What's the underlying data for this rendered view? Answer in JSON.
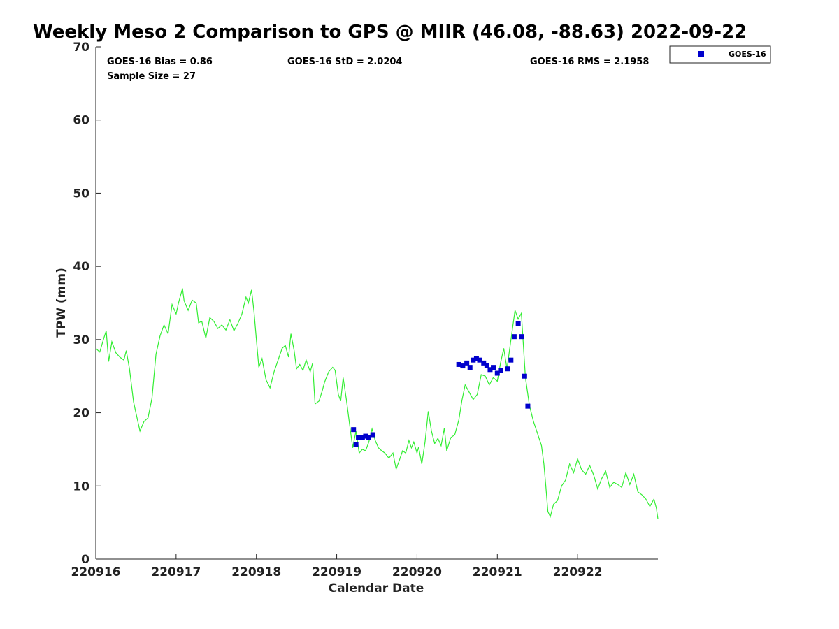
{
  "chart_data": {
    "type": "line",
    "title": "Weekly Meso 2 Comparison to GPS @ MIIR (46.08, -88.63) 2022-09-22",
    "xlabel": "Calendar Date",
    "ylabel": "TPW (mm)",
    "xlim": [
      0,
      7
    ],
    "ylim": [
      0,
      70
    ],
    "x_ticks": [
      0,
      1,
      2,
      3,
      4,
      5,
      6
    ],
    "x_tick_labels": [
      "220916",
      "220917",
      "220918",
      "220919",
      "220920",
      "220921",
      "220922"
    ],
    "y_ticks": [
      0,
      10,
      20,
      30,
      40,
      50,
      60,
      70
    ],
    "y_tick_labels": [
      "0",
      "10",
      "20",
      "30",
      "40",
      "50",
      "60",
      "70"
    ],
    "stats": {
      "bias": "GOES-16 Bias = 0.86",
      "std": "GOES-16 StD = 2.0204",
      "rms": "GOES-16 RMS = 2.1958",
      "sample_size": "Sample Size = 27"
    },
    "legend": {
      "position": "top-right",
      "entries": [
        {
          "label": "GOES-16",
          "color": "#0000cc",
          "marker": "square"
        }
      ]
    },
    "gps_line": {
      "color": "#33ee33",
      "points": [
        [
          0.0,
          28.8
        ],
        [
          0.05,
          28.3
        ],
        [
          0.1,
          30.2
        ],
        [
          0.13,
          31.2
        ],
        [
          0.16,
          27.0
        ],
        [
          0.2,
          29.7
        ],
        [
          0.25,
          28.2
        ],
        [
          0.3,
          27.6
        ],
        [
          0.35,
          27.2
        ],
        [
          0.38,
          28.5
        ],
        [
          0.42,
          26.0
        ],
        [
          0.47,
          21.5
        ],
        [
          0.5,
          20.0
        ],
        [
          0.55,
          17.5
        ],
        [
          0.6,
          18.8
        ],
        [
          0.65,
          19.3
        ],
        [
          0.7,
          22.0
        ],
        [
          0.75,
          28.0
        ],
        [
          0.8,
          30.5
        ],
        [
          0.85,
          32.0
        ],
        [
          0.9,
          30.8
        ],
        [
          0.95,
          34.8
        ],
        [
          1.0,
          33.5
        ],
        [
          1.03,
          35.0
        ],
        [
          1.08,
          37.0
        ],
        [
          1.1,
          35.3
        ],
        [
          1.15,
          34.0
        ],
        [
          1.2,
          35.4
        ],
        [
          1.25,
          35.0
        ],
        [
          1.28,
          32.3
        ],
        [
          1.32,
          32.5
        ],
        [
          1.37,
          30.2
        ],
        [
          1.42,
          33.0
        ],
        [
          1.47,
          32.5
        ],
        [
          1.52,
          31.5
        ],
        [
          1.57,
          32.0
        ],
        [
          1.62,
          31.3
        ],
        [
          1.67,
          32.7
        ],
        [
          1.72,
          31.2
        ],
        [
          1.77,
          32.2
        ],
        [
          1.82,
          33.5
        ],
        [
          1.87,
          35.8
        ],
        [
          1.9,
          35.0
        ],
        [
          1.94,
          36.8
        ],
        [
          1.97,
          33.8
        ],
        [
          2.0,
          30.0
        ],
        [
          2.03,
          26.2
        ],
        [
          2.07,
          27.4
        ],
        [
          2.12,
          24.5
        ],
        [
          2.17,
          23.4
        ],
        [
          2.22,
          25.6
        ],
        [
          2.27,
          27.2
        ],
        [
          2.32,
          28.8
        ],
        [
          2.36,
          29.2
        ],
        [
          2.4,
          27.6
        ],
        [
          2.43,
          30.8
        ],
        [
          2.47,
          28.5
        ],
        [
          2.5,
          26.0
        ],
        [
          2.54,
          26.6
        ],
        [
          2.58,
          25.8
        ],
        [
          2.62,
          27.2
        ],
        [
          2.67,
          25.6
        ],
        [
          2.7,
          26.8
        ],
        [
          2.73,
          21.2
        ],
        [
          2.78,
          21.6
        ],
        [
          2.82,
          23.0
        ],
        [
          2.85,
          24.2
        ],
        [
          2.9,
          25.6
        ],
        [
          2.95,
          26.2
        ],
        [
          2.98,
          25.8
        ],
        [
          3.02,
          22.5
        ],
        [
          3.05,
          21.6
        ],
        [
          3.08,
          24.8
        ],
        [
          3.12,
          21.8
        ],
        [
          3.16,
          18.5
        ],
        [
          3.2,
          15.2
        ],
        [
          3.24,
          17.5
        ],
        [
          3.28,
          14.5
        ],
        [
          3.32,
          15.0
        ],
        [
          3.36,
          14.8
        ],
        [
          3.4,
          16.0
        ],
        [
          3.44,
          17.8
        ],
        [
          3.48,
          16.2
        ],
        [
          3.52,
          15.2
        ],
        [
          3.56,
          14.8
        ],
        [
          3.6,
          14.5
        ],
        [
          3.65,
          13.8
        ],
        [
          3.7,
          14.5
        ],
        [
          3.74,
          12.3
        ],
        [
          3.78,
          13.5
        ],
        [
          3.82,
          14.8
        ],
        [
          3.86,
          14.5
        ],
        [
          3.9,
          16.2
        ],
        [
          3.93,
          15.2
        ],
        [
          3.96,
          16.0
        ],
        [
          4.0,
          14.5
        ],
        [
          4.02,
          15.3
        ],
        [
          4.06,
          13.0
        ],
        [
          4.1,
          16.0
        ],
        [
          4.14,
          20.2
        ],
        [
          4.18,
          17.5
        ],
        [
          4.22,
          15.8
        ],
        [
          4.26,
          16.5
        ],
        [
          4.3,
          15.5
        ],
        [
          4.34,
          17.9
        ],
        [
          4.37,
          14.8
        ],
        [
          4.42,
          16.6
        ],
        [
          4.47,
          17.0
        ],
        [
          4.52,
          19.0
        ],
        [
          4.56,
          21.7
        ],
        [
          4.6,
          23.8
        ],
        [
          4.65,
          22.8
        ],
        [
          4.7,
          21.8
        ],
        [
          4.75,
          22.5
        ],
        [
          4.8,
          25.2
        ],
        [
          4.85,
          25.0
        ],
        [
          4.9,
          23.8
        ],
        [
          4.95,
          24.8
        ],
        [
          5.0,
          24.3
        ],
        [
          5.04,
          26.8
        ],
        [
          5.08,
          28.8
        ],
        [
          5.12,
          26.0
        ],
        [
          5.17,
          30.0
        ],
        [
          5.22,
          34.0
        ],
        [
          5.26,
          32.8
        ],
        [
          5.3,
          33.6
        ],
        [
          5.35,
          24.8
        ],
        [
          5.4,
          21.0
        ],
        [
          5.45,
          18.8
        ],
        [
          5.5,
          17.2
        ],
        [
          5.55,
          15.5
        ],
        [
          5.58,
          13.0
        ],
        [
          5.6,
          10.5
        ],
        [
          5.63,
          6.5
        ],
        [
          5.66,
          5.8
        ],
        [
          5.7,
          7.5
        ],
        [
          5.75,
          8.0
        ],
        [
          5.8,
          10.0
        ],
        [
          5.85,
          10.8
        ],
        [
          5.9,
          13.0
        ],
        [
          5.95,
          11.8
        ],
        [
          6.0,
          13.7
        ],
        [
          6.05,
          12.2
        ],
        [
          6.1,
          11.6
        ],
        [
          6.15,
          12.8
        ],
        [
          6.2,
          11.5
        ],
        [
          6.25,
          9.6
        ],
        [
          6.3,
          11.0
        ],
        [
          6.35,
          12.0
        ],
        [
          6.4,
          9.8
        ],
        [
          6.45,
          10.5
        ],
        [
          6.5,
          10.2
        ],
        [
          6.55,
          9.8
        ],
        [
          6.6,
          11.8
        ],
        [
          6.65,
          10.2
        ],
        [
          6.7,
          11.6
        ],
        [
          6.75,
          9.2
        ],
        [
          6.8,
          8.8
        ],
        [
          6.85,
          8.2
        ],
        [
          6.9,
          7.2
        ],
        [
          6.95,
          8.2
        ],
        [
          6.98,
          7.0
        ],
        [
          7.0,
          5.5
        ]
      ]
    },
    "series": [
      {
        "name": "GOES-16",
        "color": "#0000cc",
        "marker": "square",
        "points": [
          [
            3.21,
            17.7
          ],
          [
            3.24,
            15.7
          ],
          [
            3.27,
            16.6
          ],
          [
            3.32,
            16.6
          ],
          [
            3.36,
            16.8
          ],
          [
            3.4,
            16.6
          ],
          [
            3.45,
            17.0
          ],
          [
            4.52,
            26.6
          ],
          [
            4.57,
            26.4
          ],
          [
            4.62,
            26.8
          ],
          [
            4.66,
            26.2
          ],
          [
            4.7,
            27.2
          ],
          [
            4.74,
            27.4
          ],
          [
            4.78,
            27.2
          ],
          [
            4.83,
            26.8
          ],
          [
            4.87,
            26.5
          ],
          [
            4.91,
            25.9
          ],
          [
            4.95,
            26.2
          ],
          [
            5.0,
            25.4
          ],
          [
            5.04,
            25.8
          ],
          [
            5.13,
            26.0
          ],
          [
            5.17,
            27.2
          ],
          [
            5.21,
            30.4
          ],
          [
            5.26,
            32.2
          ],
          [
            5.3,
            30.4
          ],
          [
            5.34,
            25.0
          ],
          [
            5.38,
            20.9
          ]
        ]
      }
    ]
  }
}
